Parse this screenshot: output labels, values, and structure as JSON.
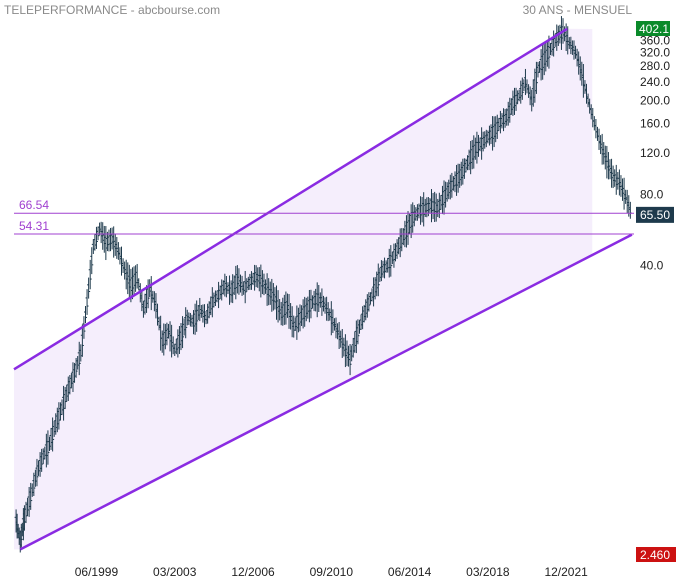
{
  "header": {
    "left": "TELEPERFORMANCE - abcbourse.com",
    "right": "30 ANS - MENSUEL"
  },
  "colors": {
    "channel": "#8a2be2",
    "channel_fill": "#f5eefc",
    "candle": "#1e3a4c",
    "level_line": "#a040d0",
    "high_badge": "#0a8a2a",
    "last_badge": "#1e3a4c",
    "low_badge": "#cc1111"
  },
  "chart_data": {
    "type": "candlestick",
    "scale": "log",
    "ylim": [
      2.46,
      402.1
    ],
    "xlim": [
      1995.5,
      2025.2
    ],
    "x_ticks": [
      "06/1999",
      "03/2003",
      "12/2006",
      "09/2010",
      "06/2014",
      "03/2018",
      "12/2021"
    ],
    "x_tick_values": [
      1999.45,
      2003.2,
      2006.95,
      2010.7,
      2014.45,
      2018.2,
      2021.95
    ],
    "y_ticks": [
      360.0,
      320.0,
      280.0,
      240.0,
      200.0,
      160.0,
      120.0,
      80.0,
      40.0
    ],
    "high_label": "402.1",
    "low_label": "2.460",
    "last_label": "65.50",
    "last_value": 65.5,
    "levels": [
      {
        "label": "66.54",
        "value": 66.54
      },
      {
        "label": "54.31",
        "value": 54.31
      }
    ],
    "channel": {
      "upper": [
        [
          1995.5,
          14.5
        ],
        [
          2022.0,
          403.0
        ]
      ],
      "lower": [
        [
          1995.8,
          2.5
        ],
        [
          2025.1,
          54.0
        ]
      ]
    },
    "series": [
      [
        1995.6,
        3.3
      ],
      [
        1995.8,
        2.7
      ],
      [
        1996.0,
        3.4
      ],
      [
        1996.3,
        4.2
      ],
      [
        1996.6,
        5.3
      ],
      [
        1996.9,
        6.2
      ],
      [
        1997.2,
        7.0
      ],
      [
        1997.5,
        8.5
      ],
      [
        1997.8,
        10.0
      ],
      [
        1998.1,
        12.0
      ],
      [
        1998.4,
        14.0
      ],
      [
        1998.7,
        17.0
      ],
      [
        1999.0,
        28.0
      ],
      [
        1999.3,
        48.0
      ],
      [
        1999.6,
        57.0
      ],
      [
        1999.9,
        50.0
      ],
      [
        2000.2,
        52.0
      ],
      [
        2000.5,
        46.0
      ],
      [
        2000.8,
        38.0
      ],
      [
        2001.1,
        33.0
      ],
      [
        2001.4,
        36.0
      ],
      [
        2001.7,
        26.0
      ],
      [
        2002.0,
        32.0
      ],
      [
        2002.3,
        27.0
      ],
      [
        2002.6,
        19.0
      ],
      [
        2002.9,
        21.0
      ],
      [
        2003.2,
        17.5
      ],
      [
        2003.5,
        20.0
      ],
      [
        2003.8,
        24.0
      ],
      [
        2004.1,
        23.0
      ],
      [
        2004.4,
        26.0
      ],
      [
        2004.7,
        24.0
      ],
      [
        2005.0,
        28.0
      ],
      [
        2005.3,
        30.0
      ],
      [
        2005.6,
        33.0
      ],
      [
        2005.9,
        31.0
      ],
      [
        2006.2,
        35.0
      ],
      [
        2006.5,
        32.0
      ],
      [
        2006.8,
        34.0
      ],
      [
        2007.1,
        36.0
      ],
      [
        2007.4,
        34.0
      ],
      [
        2007.7,
        31.0
      ],
      [
        2008.0,
        29.0
      ],
      [
        2008.3,
        25.0
      ],
      [
        2008.6,
        27.0
      ],
      [
        2008.9,
        22.0
      ],
      [
        2009.2,
        24.0
      ],
      [
        2009.5,
        26.0
      ],
      [
        2009.8,
        28.0
      ],
      [
        2010.1,
        29.0
      ],
      [
        2010.4,
        27.0
      ],
      [
        2010.7,
        24.0
      ],
      [
        2011.0,
        21.0
      ],
      [
        2011.3,
        18.0
      ],
      [
        2011.6,
        16.0
      ],
      [
        2011.9,
        20.0
      ],
      [
        2012.2,
        24.0
      ],
      [
        2012.5,
        28.0
      ],
      [
        2012.8,
        32.0
      ],
      [
        2013.1,
        38.0
      ],
      [
        2013.4,
        40.0
      ],
      [
        2013.7,
        44.0
      ],
      [
        2014.0,
        50.0
      ],
      [
        2014.3,
        56.0
      ],
      [
        2014.6,
        64.0
      ],
      [
        2014.9,
        68.0
      ],
      [
        2015.2,
        70.0
      ],
      [
        2015.5,
        72.0
      ],
      [
        2015.8,
        70.0
      ],
      [
        2016.1,
        78.0
      ],
      [
        2016.4,
        86.0
      ],
      [
        2016.7,
        92.0
      ],
      [
        2017.0,
        100.0
      ],
      [
        2017.3,
        112.0
      ],
      [
        2017.6,
        125.0
      ],
      [
        2017.9,
        132.0
      ],
      [
        2018.2,
        140.0
      ],
      [
        2018.5,
        148.0
      ],
      [
        2018.8,
        162.0
      ],
      [
        2019.1,
        170.0
      ],
      [
        2019.4,
        195.0
      ],
      [
        2019.7,
        210.0
      ],
      [
        2020.0,
        240.0
      ],
      [
        2020.3,
        200.0
      ],
      [
        2020.6,
        270.0
      ],
      [
        2020.9,
        300.0
      ],
      [
        2021.2,
        330.0
      ],
      [
        2021.5,
        370.0
      ],
      [
        2021.8,
        395.0
      ],
      [
        2022.1,
        350.0
      ],
      [
        2022.4,
        320.0
      ],
      [
        2022.7,
        260.0
      ],
      [
        2023.0,
        200.0
      ],
      [
        2023.3,
        160.0
      ],
      [
        2023.6,
        130.0
      ],
      [
        2023.9,
        110.0
      ],
      [
        2024.2,
        95.0
      ],
      [
        2024.5,
        90.0
      ],
      [
        2024.8,
        78.0
      ],
      [
        2025.1,
        65.5
      ]
    ]
  }
}
